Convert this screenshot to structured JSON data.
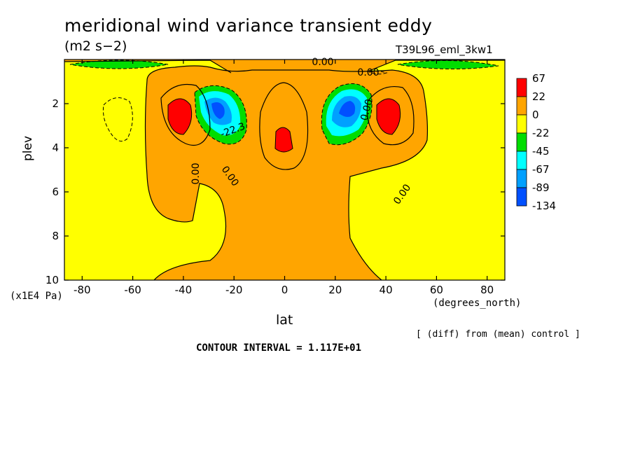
{
  "chart_data": {
    "type": "heatmap",
    "title": "meridional wind variance transient eddy",
    "units": "(m2 s−2)",
    "run_label": "T39L96_eml_3kw1",
    "xlabel": "lat",
    "x_units": "(degrees_north)",
    "ylabel": "plev",
    "y_units": "(x1E4 Pa)",
    "xlim": [
      -87,
      87
    ],
    "ylim": [
      10,
      0
    ],
    "x_ticks": [
      "-80",
      "-60",
      "-40",
      "-20",
      "0",
      "20",
      "40",
      "60",
      "80"
    ],
    "y_ticks": [
      "2",
      "4",
      "6",
      "8",
      "10"
    ],
    "colorbar": {
      "labels": [
        "67",
        "22",
        "0",
        "-22",
        "-45",
        "-67",
        "-89",
        "-134"
      ],
      "colors": [
        "#ff0000",
        "#ffa500",
        "#ffff00",
        "#00dd00",
        "#00ffff",
        "#00a0ff",
        "#0050ff"
      ]
    },
    "contour_labels": [
      "0.00",
      "0.00",
      "0.00",
      "0.00",
      "0.00",
      "-22.3",
      "0.00"
    ],
    "grid": false,
    "legend_position": "right",
    "features": [
      {
        "kind": "maximum",
        "lat": -42,
        "plev": 2.4,
        "value_range": [
          22,
          67
        ]
      },
      {
        "kind": "maximum",
        "lat": 42,
        "plev": 2.4,
        "value_range": [
          22,
          67
        ]
      },
      {
        "kind": "maximum",
        "lat": 0,
        "plev": 3.7,
        "value_range": [
          22,
          67
        ]
      },
      {
        "kind": "minimum",
        "lat": -26,
        "plev": 2.4,
        "value_range": [
          -134,
          -89
        ]
      },
      {
        "kind": "minimum",
        "lat": 25,
        "plev": 2.4,
        "value_range": [
          -134,
          -89
        ]
      },
      {
        "kind": "minimum",
        "lat": -73,
        "plev": 0.2,
        "value_range": [
          -45,
          -22
        ]
      },
      {
        "kind": "minimum",
        "lat": 73,
        "plev": 0.2,
        "value_range": [
          -45,
          -22
        ]
      }
    ]
  },
  "footer": {
    "note": "[ (diff) from (mean) control ]",
    "contour_interval": "CONTOUR INTERVAL = 1.117E+01"
  }
}
